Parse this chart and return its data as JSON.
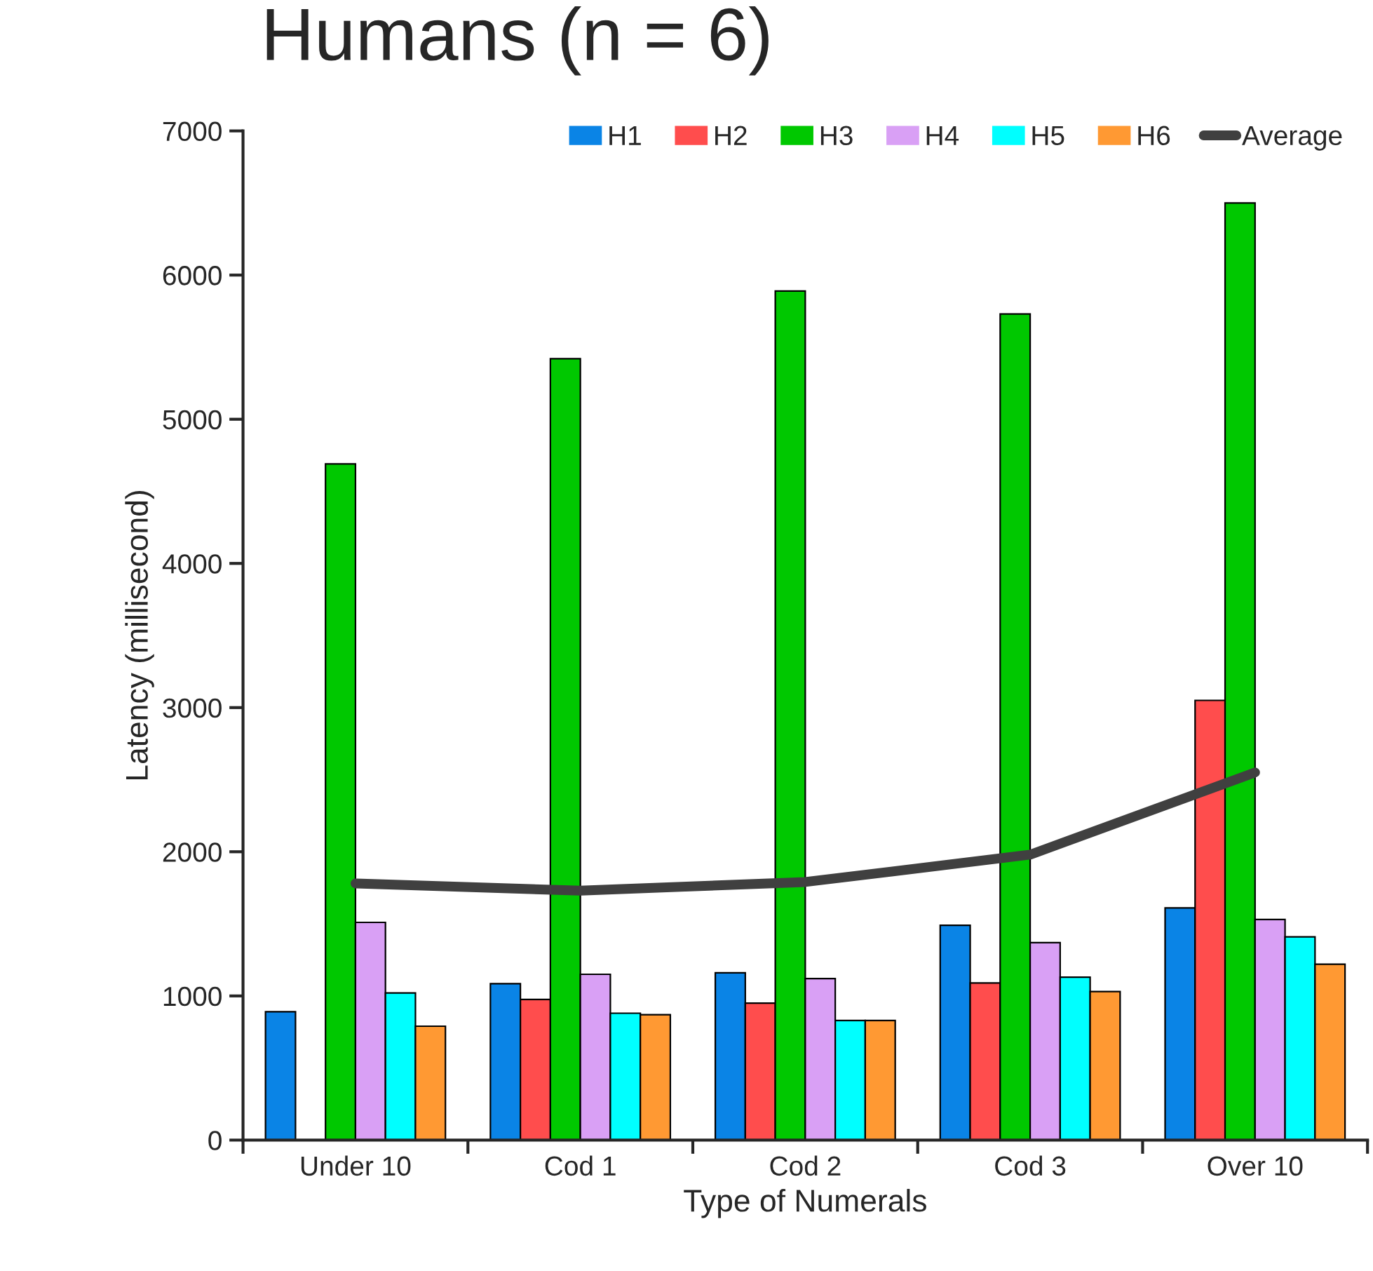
{
  "chart_data": {
    "type": "bar",
    "title": "Humans (n = 6)",
    "xlabel": "Type of Numerals",
    "ylabel": "Latency (millisecond)",
    "categories": [
      "Under 10",
      "Cod 1",
      "Cod 2",
      "Cod 3",
      "Over 10"
    ],
    "series": [
      {
        "name": "H1",
        "color": "#0a84e6",
        "values": [
          890,
          1085,
          1160,
          1490,
          1610
        ]
      },
      {
        "name": "H2",
        "color": "#ff4d4d",
        "values": [
          null,
          975,
          950,
          1090,
          3050
        ]
      },
      {
        "name": "H3",
        "color": "#00c800",
        "values": [
          4690,
          5420,
          5890,
          5730,
          6500
        ]
      },
      {
        "name": "H4",
        "color": "#d9a0f5",
        "values": [
          1510,
          1150,
          1120,
          1370,
          1530
        ]
      },
      {
        "name": "H5",
        "color": "#00ffff",
        "values": [
          1020,
          880,
          830,
          1130,
          1410
        ]
      },
      {
        "name": "H6",
        "color": "#ff9933",
        "values": [
          790,
          870,
          830,
          1030,
          1220
        ]
      },
      {
        "name": "Average",
        "type": "line",
        "color": "#404040",
        "line_style": "solid",
        "marker": "none",
        "values": [
          1780,
          1730,
          1790,
          1980,
          2550
        ]
      }
    ],
    "ylim": [
      0,
      7000
    ],
    "yticks": [
      0,
      1000,
      2000,
      3000,
      4000,
      5000,
      6000,
      7000
    ],
    "grid": false,
    "legend": "top right"
  }
}
